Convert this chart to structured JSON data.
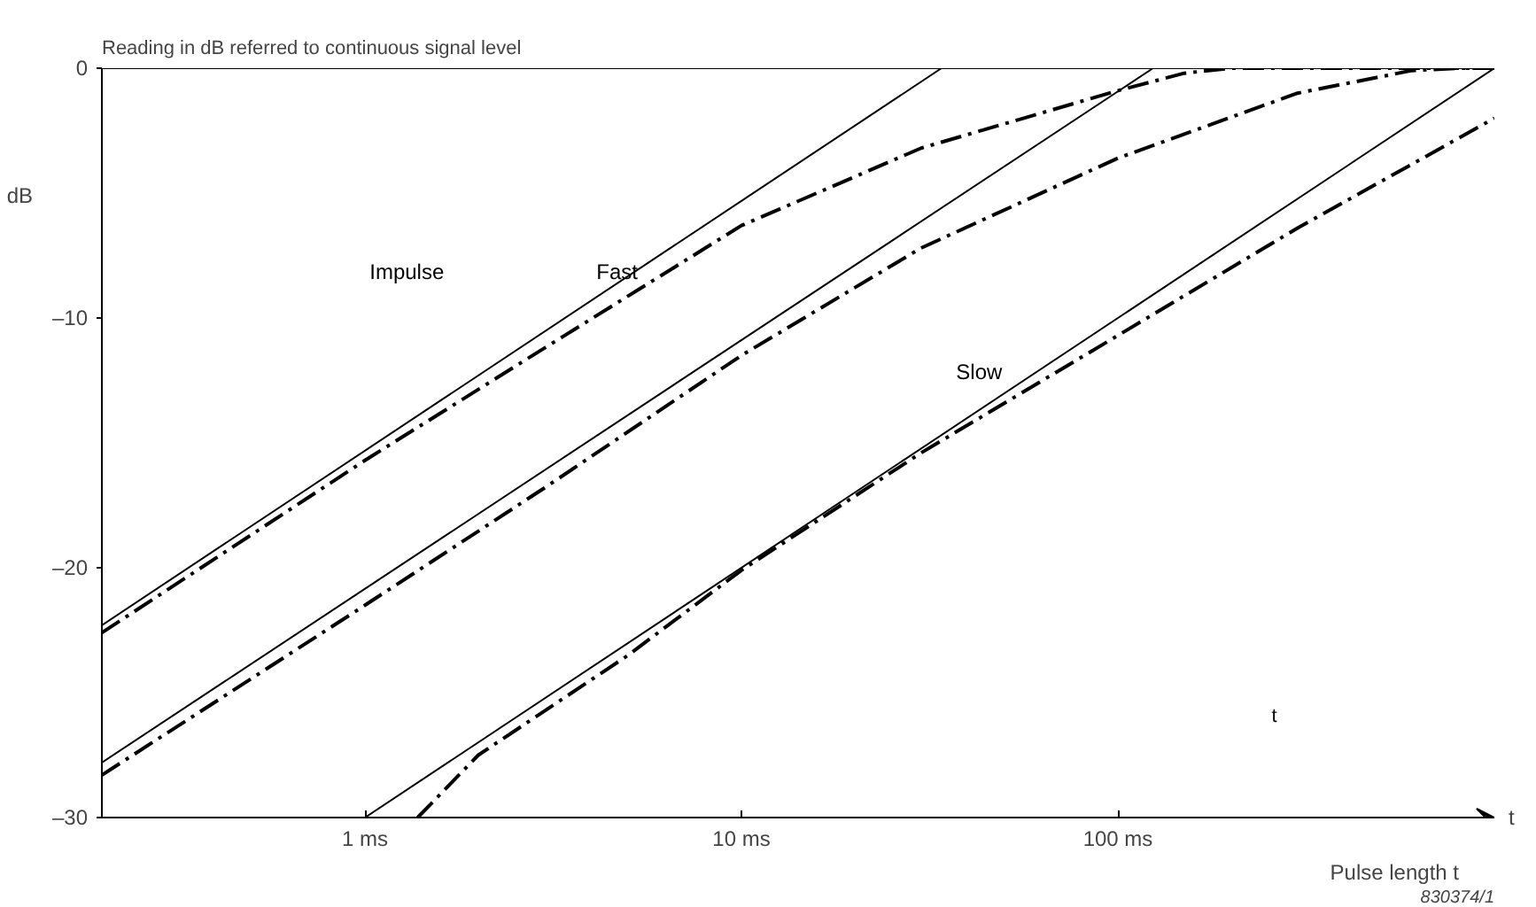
{
  "chart_data": {
    "type": "line",
    "title": "Reading in dB referred to continuous signal level",
    "xlabel": "Pulse length t",
    "ylabel": "dB",
    "log": "x",
    "grid": false,
    "marker": "none",
    "xlim": [
      0.2,
      1000
    ],
    "ylim": [
      -30,
      0
    ],
    "xticks": [
      {
        "value": 1,
        "label": "1 ms"
      },
      {
        "value": 10,
        "label": "10 ms"
      },
      {
        "value": 100,
        "label": "100 ms"
      }
    ],
    "yticks": [
      0,
      {
        "value": -10,
        "label": "–10"
      },
      {
        "value": -20,
        "label": "–20"
      },
      {
        "value": -30,
        "label": "–30"
      }
    ],
    "series": [
      {
        "color": "#000000",
        "line_style": "solid",
        "x": [
          0.2,
          34
        ],
        "values": [
          -22.3,
          0
        ]
      },
      {
        "color": "#000000",
        "line_style": "dashed",
        "x": [
          0.2,
          1,
          3,
          10,
          30,
          100,
          150,
          200,
          1000
        ],
        "values": [
          -22.6,
          -15.7,
          -11.2,
          -6.3,
          -3.2,
          -0.9,
          -0.2,
          0,
          0
        ]
      },
      {
        "color": "#000000",
        "line_style": "solid",
        "x": [
          0.2,
          124
        ],
        "values": [
          -27.8,
          0
        ]
      },
      {
        "color": "#000000",
        "line_style": "dashed",
        "x": [
          0.2,
          1,
          3,
          10,
          30,
          100,
          300,
          600,
          800,
          1000
        ],
        "values": [
          -28.3,
          -21.5,
          -16.8,
          -11.5,
          -7.2,
          -3.6,
          -1.0,
          -0.1,
          0,
          0
        ]
      },
      {
        "color": "#000000",
        "line_style": "solid",
        "x": [
          1,
          1000
        ],
        "values": [
          -30,
          0
        ]
      },
      {
        "color": "#000000",
        "line_style": "dashed",
        "x": [
          1.38,
          2,
          5,
          10,
          30,
          100,
          300,
          1000
        ],
        "values": [
          -30,
          -27.5,
          -23.5,
          -20.1,
          -15.4,
          -10.7,
          -6.4,
          -2.0
        ]
      }
    ],
    "annotations": [
      "t",
      "830374/1",
      "t",
      "Impulse",
      "Fast",
      "Slow"
    ]
  }
}
